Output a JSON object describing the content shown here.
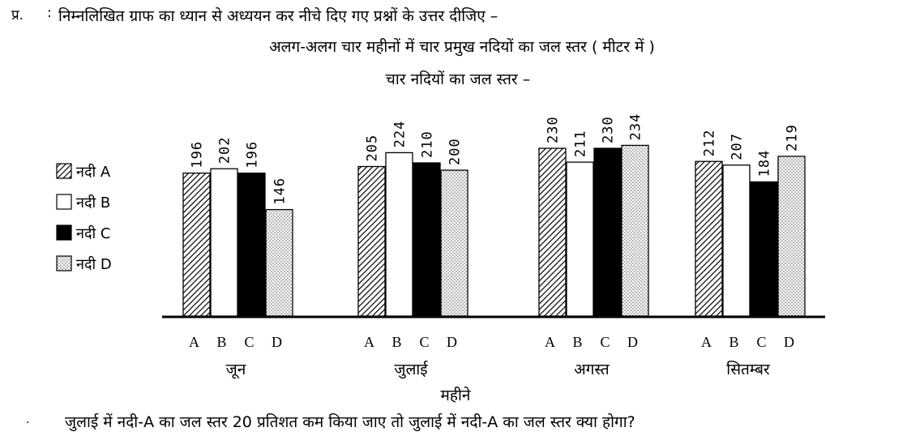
{
  "header": {
    "prefix": "प्र.",
    "colon": ":",
    "instruction": "निम्नलिखित ग्राफ का ध्यान से अध्ययन कर नीचे दिए गए प्रश्नों के उत्तर दीजिए –",
    "subtitle": "अलग-अलग चार महीनों में चार प्रमुख नदियों का जल स्तर ( मीटर में )"
  },
  "question": {
    "marker": ".",
    "text": "जुलाई में नदी-A का जल स्तर 20 प्रतिशत कम किया जाए तो जुलाई में नदी-A का जल स्तर क्या होगा?"
  },
  "chart_data": {
    "type": "bar",
    "title": "चार नदियों का जल स्तर –",
    "xlabel": "महीने",
    "ylabel": "",
    "ylim": [
      0,
      240
    ],
    "grid": false,
    "legend_position": "left",
    "categories": [
      "जून",
      "जुलाई",
      "अगस्त",
      "सितम्बर"
    ],
    "bar_labels": [
      "A",
      "B",
      "C",
      "D"
    ],
    "series": [
      {
        "name": "नदी A",
        "values": [
          196,
          205,
          230,
          212
        ],
        "fill": "hatch",
        "color": "#000000"
      },
      {
        "name": "नदी B",
        "values": [
          202,
          224,
          211,
          207
        ],
        "fill": "white",
        "color": "#ffffff"
      },
      {
        "name": "नदी C",
        "values": [
          196,
          210,
          230,
          184
        ],
        "fill": "black",
        "color": "#000000"
      },
      {
        "name": "नदी D",
        "values": [
          146,
          200,
          234,
          219
        ],
        "fill": "dots",
        "color": "#000000"
      }
    ]
  }
}
